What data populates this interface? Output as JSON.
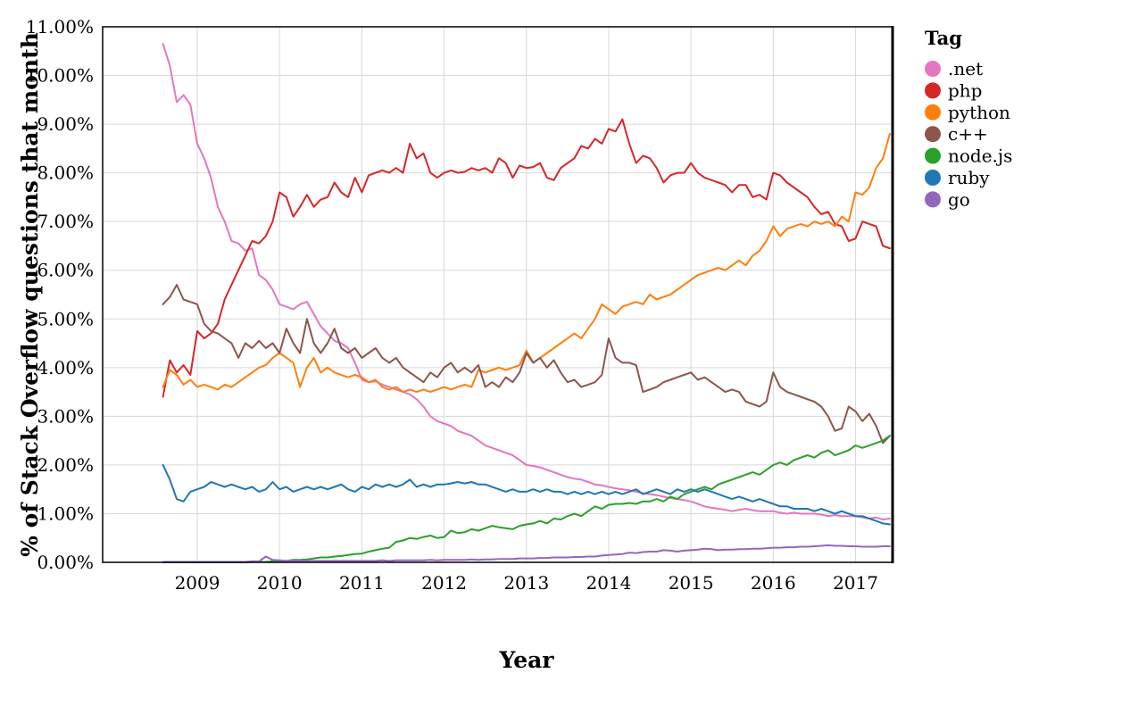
{
  "page": {
    "background": "#ffffff"
  },
  "chart_data": {
    "type": "line",
    "title": "",
    "xlabel": "Year",
    "ylabel": "% of Stack Overflow questions that month",
    "legend_title": "Tag",
    "legend_position": "right",
    "grid": true,
    "grid_color": "#d9d9d9",
    "xlim": [
      2007.85,
      2017.45
    ],
    "ylim": [
      0,
      11
    ],
    "x_start": 2008.5833,
    "x_step": 0.0833333,
    "x_ticks": [
      {
        "value": 2009,
        "label": "2009"
      },
      {
        "value": 2010,
        "label": "2010"
      },
      {
        "value": 2011,
        "label": "2011"
      },
      {
        "value": 2012,
        "label": "2012"
      },
      {
        "value": 2013,
        "label": "2013"
      },
      {
        "value": 2014,
        "label": "2014"
      },
      {
        "value": 2015,
        "label": "2015"
      },
      {
        "value": 2016,
        "label": "2016"
      },
      {
        "value": 2017,
        "label": "2017"
      }
    ],
    "y_ticks": [
      {
        "value": 0,
        "label": "0.00%"
      },
      {
        "value": 1,
        "label": "1.00%"
      },
      {
        "value": 2,
        "label": "2.00%"
      },
      {
        "value": 3,
        "label": "3.00%"
      },
      {
        "value": 4,
        "label": "4.00%"
      },
      {
        "value": 5,
        "label": "5.00%"
      },
      {
        "value": 6,
        "label": "6.00%"
      },
      {
        "value": 7,
        "label": "7.00%"
      },
      {
        "value": 8,
        "label": "8.00%"
      },
      {
        "value": 9,
        "label": "9.00%"
      },
      {
        "value": 10,
        "label": "10.00%"
      },
      {
        "value": 11,
        "label": "11.00%"
      }
    ],
    "series": [
      {
        "name": ".net",
        "color": "#e377c2",
        "values": [
          10.65,
          10.2,
          9.45,
          9.6,
          9.4,
          8.6,
          8.3,
          7.9,
          7.3,
          7.0,
          6.6,
          6.55,
          6.4,
          6.45,
          5.9,
          5.8,
          5.6,
          5.3,
          5.25,
          5.2,
          5.3,
          5.35,
          5.1,
          4.85,
          4.7,
          4.55,
          4.5,
          4.4,
          4.1,
          3.75,
          3.7,
          3.72,
          3.65,
          3.6,
          3.55,
          3.5,
          3.45,
          3.35,
          3.2,
          3.0,
          2.9,
          2.85,
          2.8,
          2.7,
          2.65,
          2.6,
          2.5,
          2.4,
          2.35,
          2.3,
          2.25,
          2.2,
          2.1,
          2.0,
          1.98,
          1.95,
          1.9,
          1.85,
          1.8,
          1.75,
          1.72,
          1.7,
          1.65,
          1.6,
          1.58,
          1.55,
          1.52,
          1.5,
          1.48,
          1.45,
          1.42,
          1.4,
          1.38,
          1.35,
          1.32,
          1.3,
          1.28,
          1.25,
          1.2,
          1.15,
          1.12,
          1.1,
          1.08,
          1.05,
          1.08,
          1.1,
          1.07,
          1.05,
          1.05,
          1.05,
          1.02,
          1.0,
          1.02,
          1.0,
          1.0,
          1.0,
          0.98,
          0.95,
          0.97,
          0.95,
          0.95,
          0.95,
          0.92,
          0.9,
          0.92,
          0.88,
          0.9
        ]
      },
      {
        "name": "php",
        "color": "#d62728",
        "values": [
          3.4,
          4.15,
          3.9,
          4.05,
          3.85,
          4.75,
          4.6,
          4.7,
          4.9,
          5.4,
          5.7,
          6.0,
          6.3,
          6.6,
          6.55,
          6.7,
          7.0,
          7.6,
          7.5,
          7.1,
          7.3,
          7.55,
          7.3,
          7.45,
          7.5,
          7.8,
          7.6,
          7.5,
          7.9,
          7.6,
          7.95,
          8.0,
          8.05,
          8.0,
          8.1,
          8.0,
          8.6,
          8.3,
          8.4,
          8.0,
          7.9,
          8.0,
          8.05,
          8.0,
          8.02,
          8.1,
          8.05,
          8.1,
          8.0,
          8.3,
          8.2,
          7.9,
          8.15,
          8.1,
          8.12,
          8.2,
          7.9,
          7.85,
          8.1,
          8.2,
          8.3,
          8.55,
          8.5,
          8.7,
          8.6,
          8.9,
          8.85,
          9.1,
          8.6,
          8.2,
          8.35,
          8.3,
          8.1,
          7.8,
          7.95,
          8.0,
          8.0,
          8.2,
          8.0,
          7.9,
          7.85,
          7.8,
          7.75,
          7.6,
          7.75,
          7.75,
          7.5,
          7.55,
          7.45,
          8.0,
          7.95,
          7.8,
          7.7,
          7.6,
          7.5,
          7.3,
          7.15,
          7.2,
          6.95,
          6.9,
          6.6,
          6.65,
          7.0,
          6.95,
          6.9,
          6.5,
          6.45
        ]
      },
      {
        "name": "python",
        "color": "#ff7f0e",
        "values": [
          3.6,
          3.95,
          3.85,
          3.65,
          3.75,
          3.6,
          3.65,
          3.6,
          3.55,
          3.65,
          3.6,
          3.7,
          3.8,
          3.9,
          4.0,
          4.05,
          4.2,
          4.3,
          4.2,
          4.1,
          3.6,
          4.0,
          4.2,
          3.9,
          4.0,
          3.9,
          3.85,
          3.8,
          3.85,
          3.8,
          3.7,
          3.75,
          3.6,
          3.55,
          3.6,
          3.5,
          3.55,
          3.5,
          3.55,
          3.5,
          3.55,
          3.6,
          3.55,
          3.6,
          3.65,
          3.6,
          3.95,
          3.9,
          3.95,
          4.0,
          3.95,
          4.0,
          4.05,
          4.35,
          4.1,
          4.2,
          4.3,
          4.4,
          4.5,
          4.6,
          4.7,
          4.6,
          4.8,
          5.0,
          5.3,
          5.2,
          5.1,
          5.25,
          5.3,
          5.35,
          5.3,
          5.5,
          5.4,
          5.45,
          5.5,
          5.6,
          5.7,
          5.8,
          5.9,
          5.95,
          6.0,
          6.05,
          6.0,
          6.1,
          6.2,
          6.1,
          6.3,
          6.4,
          6.6,
          6.9,
          6.7,
          6.85,
          6.9,
          6.95,
          6.9,
          7.0,
          6.95,
          7.0,
          6.9,
          7.1,
          7.0,
          7.6,
          7.55,
          7.7,
          8.1,
          8.3,
          8.8
        ]
      },
      {
        "name": "c++",
        "color": "#8c564b",
        "values": [
          5.3,
          5.45,
          5.7,
          5.4,
          5.35,
          5.3,
          4.9,
          4.75,
          4.7,
          4.6,
          4.5,
          4.2,
          4.5,
          4.4,
          4.55,
          4.4,
          4.5,
          4.3,
          4.8,
          4.5,
          4.3,
          5.0,
          4.5,
          4.3,
          4.5,
          4.8,
          4.4,
          4.3,
          4.4,
          4.2,
          4.3,
          4.4,
          4.2,
          4.1,
          4.2,
          4.0,
          3.9,
          3.8,
          3.7,
          3.9,
          3.8,
          4.0,
          4.1,
          3.9,
          4.0,
          3.9,
          4.05,
          3.6,
          3.7,
          3.6,
          3.8,
          3.7,
          3.9,
          4.3,
          4.1,
          4.2,
          4.0,
          4.15,
          3.9,
          3.7,
          3.75,
          3.6,
          3.65,
          3.7,
          3.85,
          4.6,
          4.2,
          4.1,
          4.1,
          4.05,
          3.5,
          3.55,
          3.6,
          3.7,
          3.75,
          3.8,
          3.85,
          3.9,
          3.75,
          3.8,
          3.7,
          3.6,
          3.5,
          3.55,
          3.5,
          3.3,
          3.25,
          3.2,
          3.3,
          3.9,
          3.6,
          3.5,
          3.45,
          3.4,
          3.35,
          3.3,
          3.2,
          3.0,
          2.7,
          2.75,
          3.2,
          3.1,
          2.9,
          3.05,
          2.8,
          2.45,
          2.6
        ]
      },
      {
        "name": "node.js",
        "color": "#2ca02c",
        "values": [
          0,
          0,
          0,
          0,
          0,
          0,
          0,
          0,
          0,
          0,
          0,
          0,
          0,
          0.01,
          0.01,
          0.01,
          0.02,
          0.02,
          0.03,
          0.05,
          0.05,
          0.06,
          0.08,
          0.1,
          0.1,
          0.12,
          0.13,
          0.15,
          0.17,
          0.18,
          0.22,
          0.25,
          0.28,
          0.3,
          0.42,
          0.45,
          0.5,
          0.48,
          0.52,
          0.55,
          0.5,
          0.52,
          0.65,
          0.6,
          0.62,
          0.68,
          0.65,
          0.7,
          0.75,
          0.72,
          0.7,
          0.68,
          0.75,
          0.78,
          0.8,
          0.85,
          0.8,
          0.9,
          0.88,
          0.95,
          1.0,
          0.95,
          1.05,
          1.15,
          1.1,
          1.18,
          1.2,
          1.2,
          1.22,
          1.2,
          1.25,
          1.25,
          1.3,
          1.25,
          1.35,
          1.3,
          1.4,
          1.45,
          1.5,
          1.55,
          1.5,
          1.6,
          1.65,
          1.7,
          1.75,
          1.8,
          1.85,
          1.8,
          1.9,
          2.0,
          2.05,
          2.0,
          2.1,
          2.15,
          2.2,
          2.15,
          2.25,
          2.3,
          2.2,
          2.25,
          2.3,
          2.4,
          2.35,
          2.4,
          2.45,
          2.5,
          2.6
        ]
      },
      {
        "name": "ruby",
        "color": "#1f77b4",
        "values": [
          2.0,
          1.7,
          1.3,
          1.25,
          1.45,
          1.5,
          1.55,
          1.65,
          1.6,
          1.55,
          1.6,
          1.55,
          1.5,
          1.55,
          1.45,
          1.5,
          1.65,
          1.5,
          1.55,
          1.45,
          1.5,
          1.55,
          1.5,
          1.55,
          1.5,
          1.55,
          1.6,
          1.5,
          1.45,
          1.55,
          1.5,
          1.6,
          1.55,
          1.6,
          1.55,
          1.6,
          1.7,
          1.55,
          1.6,
          1.55,
          1.6,
          1.6,
          1.62,
          1.65,
          1.62,
          1.65,
          1.6,
          1.6,
          1.55,
          1.5,
          1.45,
          1.5,
          1.45,
          1.45,
          1.5,
          1.45,
          1.5,
          1.45,
          1.45,
          1.4,
          1.45,
          1.4,
          1.45,
          1.4,
          1.45,
          1.4,
          1.45,
          1.4,
          1.45,
          1.5,
          1.4,
          1.45,
          1.5,
          1.45,
          1.4,
          1.5,
          1.45,
          1.5,
          1.45,
          1.5,
          1.45,
          1.4,
          1.35,
          1.3,
          1.35,
          1.3,
          1.25,
          1.3,
          1.25,
          1.2,
          1.15,
          1.15,
          1.1,
          1.1,
          1.1,
          1.05,
          1.1,
          1.05,
          1.0,
          1.05,
          1.0,
          0.95,
          0.95,
          0.9,
          0.85,
          0.8,
          0.78
        ]
      },
      {
        "name": "go",
        "color": "#9467bd",
        "values": [
          0.01,
          0.01,
          0.01,
          0.01,
          0.01,
          0.01,
          0.01,
          0.01,
          0.01,
          0.01,
          0.01,
          0.01,
          0.01,
          0.02,
          0.02,
          0.12,
          0.05,
          0.04,
          0.03,
          0.03,
          0.03,
          0.03,
          0.03,
          0.03,
          0.03,
          0.03,
          0.03,
          0.03,
          0.03,
          0.03,
          0.03,
          0.03,
          0.04,
          0.03,
          0.04,
          0.04,
          0.04,
          0.04,
          0.04,
          0.05,
          0.04,
          0.05,
          0.05,
          0.05,
          0.05,
          0.06,
          0.05,
          0.06,
          0.06,
          0.07,
          0.07,
          0.07,
          0.08,
          0.08,
          0.08,
          0.09,
          0.09,
          0.1,
          0.1,
          0.1,
          0.11,
          0.11,
          0.12,
          0.12,
          0.14,
          0.15,
          0.16,
          0.17,
          0.2,
          0.19,
          0.21,
          0.22,
          0.22,
          0.25,
          0.24,
          0.22,
          0.24,
          0.25,
          0.26,
          0.28,
          0.27,
          0.25,
          0.26,
          0.26,
          0.27,
          0.27,
          0.28,
          0.28,
          0.29,
          0.3,
          0.3,
          0.31,
          0.31,
          0.32,
          0.32,
          0.33,
          0.34,
          0.35,
          0.34,
          0.34,
          0.33,
          0.33,
          0.32,
          0.32,
          0.32,
          0.33,
          0.33
        ]
      }
    ]
  }
}
